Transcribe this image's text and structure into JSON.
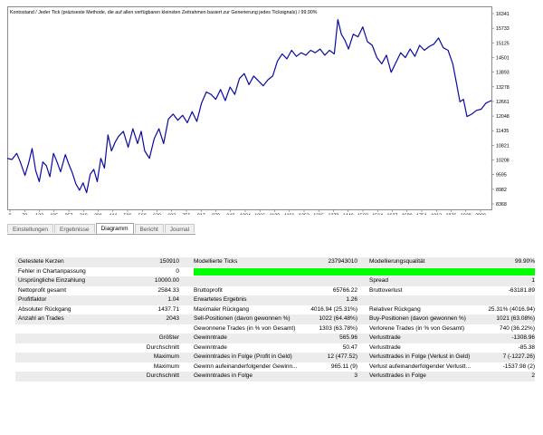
{
  "chart": {
    "title": "Kontostand / Jeder Tick (präziseste Methode, die auf allen verfügbaren kleinsten Zeitrahmen basiert zur Generierung jedes Ticksignals) / 99.90%",
    "line_color": "#0a0aa0",
    "y_ticks": [
      "16341",
      "15733",
      "15125",
      "14501",
      "13893",
      "13278",
      "12661",
      "12048",
      "11435",
      "10821",
      "10208",
      "9595",
      "8982",
      "8368"
    ],
    "x_ticks": [
      "0",
      "70",
      "132",
      "195",
      "257",
      "319",
      "381",
      "444",
      "506",
      "568",
      "630",
      "693",
      "755",
      "817",
      "879",
      "942",
      "1004",
      "1066",
      "1129",
      "1191",
      "1253",
      "1315",
      "1378",
      "1440",
      "1502",
      "1564",
      "1627",
      "1689",
      "1751",
      "1813",
      "1876",
      "1938",
      "2000"
    ]
  },
  "chart_data": {
    "type": "line",
    "title": "Kontostand / Jeder Tick (präziseste Methode, die auf allen verfügbaren kleinsten Zeitrahmen basiert zur Generierung jedes Ticksignals) / 99.90%",
    "xlabel": "",
    "ylabel": "",
    "xlim": [
      0,
      2043
    ],
    "ylim": [
      8368,
      16341
    ],
    "grid": false,
    "series": [
      {
        "values": [
          [
            0,
            10300
          ],
          [
            20,
            10250
          ],
          [
            40,
            10500
          ],
          [
            55,
            10150
          ],
          [
            75,
            9600
          ],
          [
            90,
            10100
          ],
          [
            105,
            10700
          ],
          [
            120,
            9800
          ],
          [
            135,
            9350
          ],
          [
            150,
            10150
          ],
          [
            165,
            10000
          ],
          [
            180,
            9550
          ],
          [
            195,
            10500
          ],
          [
            210,
            10150
          ],
          [
            225,
            9750
          ],
          [
            245,
            10450
          ],
          [
            260,
            10050
          ],
          [
            275,
            9700
          ],
          [
            290,
            9250
          ],
          [
            305,
            9000
          ],
          [
            320,
            9300
          ],
          [
            335,
            8900
          ],
          [
            350,
            9650
          ],
          [
            365,
            9850
          ],
          [
            380,
            9350
          ],
          [
            395,
            10300
          ],
          [
            410,
            9900
          ],
          [
            425,
            11250
          ],
          [
            440,
            10600
          ],
          [
            455,
            10950
          ],
          [
            470,
            11200
          ],
          [
            490,
            11400
          ],
          [
            510,
            10750
          ],
          [
            530,
            11500
          ],
          [
            550,
            10900
          ],
          [
            565,
            11400
          ],
          [
            580,
            10600
          ],
          [
            600,
            10300
          ],
          [
            620,
            11100
          ],
          [
            640,
            11500
          ],
          [
            660,
            10900
          ],
          [
            680,
            11900
          ],
          [
            700,
            12100
          ],
          [
            720,
            11850
          ],
          [
            740,
            12050
          ],
          [
            760,
            11750
          ],
          [
            780,
            12200
          ],
          [
            800,
            11800
          ],
          [
            820,
            12550
          ],
          [
            840,
            13000
          ],
          [
            860,
            12900
          ],
          [
            880,
            12700
          ],
          [
            900,
            13100
          ],
          [
            920,
            12650
          ],
          [
            940,
            13200
          ],
          [
            960,
            12900
          ],
          [
            980,
            13550
          ],
          [
            1000,
            13750
          ],
          [
            1020,
            13300
          ],
          [
            1040,
            13650
          ],
          [
            1060,
            13450
          ],
          [
            1080,
            13250
          ],
          [
            1100,
            13500
          ],
          [
            1120,
            13650
          ],
          [
            1140,
            14250
          ],
          [
            1160,
            14550
          ],
          [
            1180,
            14350
          ],
          [
            1200,
            14700
          ],
          [
            1220,
            14450
          ],
          [
            1240,
            14600
          ],
          [
            1260,
            14500
          ],
          [
            1280,
            14700
          ],
          [
            1300,
            14600
          ],
          [
            1320,
            14750
          ],
          [
            1340,
            14500
          ],
          [
            1360,
            14700
          ],
          [
            1380,
            14550
          ],
          [
            1395,
            15950
          ],
          [
            1410,
            15350
          ],
          [
            1425,
            15100
          ],
          [
            1440,
            14750
          ],
          [
            1460,
            15350
          ],
          [
            1480,
            15250
          ],
          [
            1500,
            15650
          ],
          [
            1520,
            15050
          ],
          [
            1540,
            14900
          ],
          [
            1560,
            14400
          ],
          [
            1580,
            14150
          ],
          [
            1600,
            14500
          ],
          [
            1620,
            13800
          ],
          [
            1640,
            14200
          ],
          [
            1660,
            14600
          ],
          [
            1680,
            14400
          ],
          [
            1700,
            14750
          ],
          [
            1720,
            14450
          ],
          [
            1740,
            14900
          ],
          [
            1760,
            14700
          ],
          [
            1780,
            14850
          ],
          [
            1800,
            14950
          ],
          [
            1820,
            15200
          ],
          [
            1840,
            14800
          ],
          [
            1860,
            14700
          ],
          [
            1880,
            14150
          ],
          [
            1895,
            13400
          ],
          [
            1910,
            12600
          ],
          [
            1925,
            12700
          ],
          [
            1940,
            12000
          ],
          [
            1960,
            12100
          ],
          [
            1980,
            12250
          ],
          [
            2000,
            12300
          ],
          [
            2020,
            12550
          ],
          [
            2043,
            12650
          ]
        ]
      }
    ]
  },
  "tabs": [
    {
      "label": "Einstellungen",
      "active": false
    },
    {
      "label": "Ergebnisse",
      "active": false
    },
    {
      "label": "Diagramm",
      "active": true
    },
    {
      "label": "Bericht",
      "active": false
    },
    {
      "label": "Journal",
      "active": false
    }
  ],
  "report": {
    "r1": {
      "l1": "Getestete Kerzen",
      "v1": "150910",
      "l2": "Modellierte Ticks",
      "v2": "237943010",
      "l3": "Modellierungsqualität",
      "v3": "99.90%"
    },
    "r2": {
      "l1": "Fehler in Chartanpassung",
      "v1": "0",
      "quality_pct": "99.90"
    },
    "r3": {
      "l1": "Ursprüngliche Einzahlung",
      "v1": "10000.00",
      "l3": "Spread",
      "v3": "1"
    },
    "r4": {
      "l1": "Nettoprofit gesamt",
      "v1": "2584.33",
      "l2": "Bruttoprofit",
      "v2": "65766.22",
      "l3": "Bruttoverlust",
      "v3": "-63181.89"
    },
    "r5": {
      "l1": "Profitfaktor",
      "v1": "1.04",
      "l2": "Erwartetes Ergebnis",
      "v2": "1.26"
    },
    "r6": {
      "l1": "Absoluter Rückgang",
      "v1": "1437.71",
      "l2": "Maximaler Rückgang",
      "v2": "4016.94 (25.31%)",
      "l3": "Relativer Rückgang",
      "v3": "25.31% (4016.94)"
    },
    "r7": {
      "l1": "Anzahl an Trades",
      "v1": "2043",
      "l2": "Sell-Positionen (davon gewonnen %)",
      "v2": "1022 (64.48%)",
      "l3": "Buy-Positionen (davon gewonnen %)",
      "v3": "1021 (63.08%)"
    },
    "r8": {
      "l2": "Gewonnene Trades (in % von Gesamt)",
      "v2": "1303 (63.78%)",
      "l3": "Verlorene Trades (in % von Gesamt)",
      "v3": "740 (36.22%)"
    },
    "r9": {
      "l1": "Größter",
      "l2": "Gewinntrade",
      "v2": "565.96",
      "l3": "Verlusttrade",
      "v3": "-1308.96"
    },
    "r10": {
      "l1": "Durchschnitt",
      "l2": "Gewinntrade",
      "v2": "50.47",
      "l3": "Verlusttrade",
      "v3": "-85.38"
    },
    "r11": {
      "l1": "Maximum",
      "l2": "Gewinntrades in Folge (Profit in Geld)",
      "v2": "12 (477.52)",
      "l3": "Verlusttrades in Folge (Verlust in Geld)",
      "v3": "7 (-1227.26)"
    },
    "r12": {
      "l1": "Maximum",
      "l2": "Gewinn aufeinanderfolgender Gewinn...",
      "v2": "965.11 (9)",
      "l3": "Verlust aufeinanderfolgender Verlustt...",
      "v3": "-1537.98 (2)"
    },
    "r13": {
      "l1": "Durchschnitt",
      "l2": "Gewinntrades in Folge",
      "v2": "3",
      "l3": "Verlusttrades in Folge",
      "v3": "2"
    }
  },
  "colors": {
    "quality_bar": "#00ff00",
    "line": "#0a0aa0",
    "row_shade": "#ececec"
  }
}
